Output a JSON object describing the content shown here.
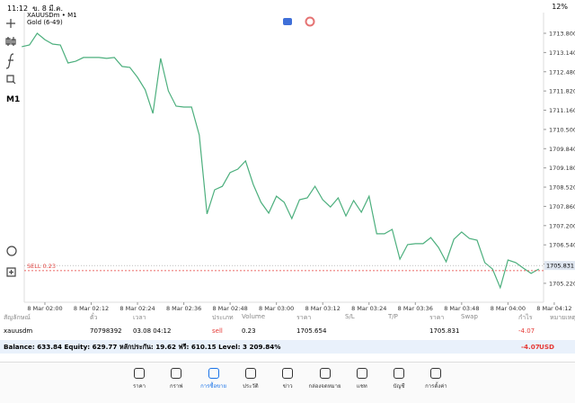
{
  "status": {
    "time": "11:12",
    "date": "ข. 8 มี.ค.",
    "battery": "12%"
  },
  "chart_data": {
    "type": "line",
    "title": "XAUUSDm • M1",
    "subtitle": "Gold (6-49)",
    "timeframe": "M1",
    "categories": [
      null,
      null,
      null,
      "8 Mar 02:00",
      null,
      null,
      null,
      null,
      null,
      "8 Mar 02:12",
      null,
      null,
      null,
      null,
      null,
      "8 Mar 02:24",
      null,
      null,
      null,
      null,
      null,
      "8 Mar 02:36",
      null,
      null,
      null,
      null,
      null,
      "8 Mar 02:48",
      null,
      null,
      null,
      null,
      null,
      "8 Mar 03:00",
      null,
      null,
      null,
      null,
      null,
      "8 Mar 03:12",
      null,
      null,
      null,
      null,
      null,
      "8 Mar 03:24",
      null,
      null,
      null,
      null,
      null,
      "8 Mar 03:36",
      null,
      null,
      null,
      null,
      null,
      "8 Mar 03:48",
      null,
      null,
      null,
      null,
      null,
      "8 Mar 04:00",
      null,
      null,
      null,
      null,
      null,
      "8 Mar 04:12"
    ],
    "values": [
      1713.34,
      1713.4,
      1713.8,
      1713.58,
      1713.43,
      1713.4,
      1712.78,
      1712.84,
      1712.97,
      1712.97,
      1712.97,
      1712.94,
      1712.97,
      1712.66,
      1712.63,
      1712.29,
      1711.86,
      1711.05,
      1712.94,
      1711.82,
      1711.3,
      1711.27,
      1711.27,
      1710.31,
      1707.6,
      1708.43,
      1708.55,
      1709.02,
      1709.14,
      1709.42,
      1708.61,
      1708.0,
      1707.63,
      1708.21,
      1708.0,
      1707.44,
      1708.09,
      1708.15,
      1708.55,
      1708.09,
      1707.84,
      1708.15,
      1707.53,
      1708.06,
      1707.66,
      1708.21,
      1706.92,
      1706.92,
      1707.07,
      1706.05,
      1706.55,
      1706.58,
      1706.58,
      1706.79,
      1706.45,
      1705.96,
      1706.73,
      1706.98,
      1706.76,
      1706.7,
      1705.93,
      1705.71,
      1705.07,
      1706.02,
      1705.93,
      1705.74,
      1705.56,
      1705.71,
      null,
      null
    ],
    "color": "#4caf7d",
    "ylim": [
      1704.57,
      1714.51
    ],
    "yticks": [
      {
        "value": 1713.8,
        "label": "1713.800"
      },
      {
        "value": 1713.14,
        "label": "1713.140"
      },
      {
        "value": 1712.48,
        "label": "1712.480"
      },
      {
        "value": 1711.82,
        "label": "1711.820"
      },
      {
        "value": 1711.16,
        "label": "1711.160"
      },
      {
        "value": 1710.5,
        "label": "1710.500"
      },
      {
        "value": 1709.84,
        "label": "1709.840"
      },
      {
        "value": 1709.18,
        "label": "1709.180"
      },
      {
        "value": 1708.52,
        "label": "1708.520"
      },
      {
        "value": 1707.86,
        "label": "1707.860"
      },
      {
        "value": 1707.2,
        "label": "1707.200"
      },
      {
        "value": 1706.54,
        "label": "1706.540"
      },
      {
        "value": 1705.88,
        "label": "1705.880"
      },
      {
        "value": 1705.22,
        "label": "1705.220"
      }
    ],
    "current_price": {
      "value": 1705.831,
      "label": "1705.831"
    },
    "order_line": {
      "value": 1705.654,
      "label": "SELL 0.23",
      "color": "#e53935"
    }
  },
  "table": {
    "headers": [
      "สัญลักษณ์",
      "ตั๋ว",
      "เวลา",
      "ประเภท",
      "Volume",
      "ราคา",
      "S/L",
      "T/P",
      "ราคา",
      "Swap",
      "กำไร",
      "หมายเหตุ"
    ],
    "rows": [
      [
        "xauusdm",
        "70798392",
        "03.08 04:12",
        "sell",
        "0.23",
        "1705.654",
        "",
        "",
        "1705.831",
        "",
        "-4.07",
        ""
      ]
    ],
    "balance": "Balance: 633.84 Equity: 629.77 หลักประกัน: 19.62 ฟรี: 610.15 Level: 3 209.84%",
    "total_profit": "-4.07",
    "currency": "USD"
  },
  "nav": [
    "ราคา",
    "กราฟ",
    "การซื้อขาย",
    "ประวัติ",
    "ข่าว",
    "กล่องจดหมาย",
    "แชท",
    "บัญชี",
    "การตั้งค่า"
  ],
  "active_nav": 2
}
